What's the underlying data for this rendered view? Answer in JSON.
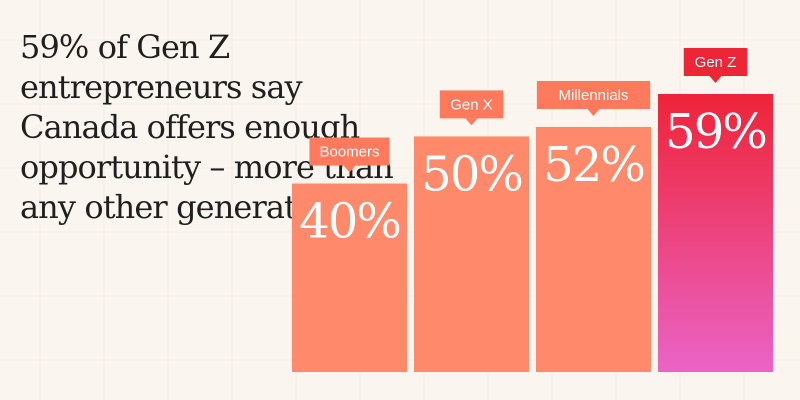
{
  "headline": "59% of Gen Z entrepreneurs say Canada offers enough opportunity – more than any other generation",
  "colors": {
    "background": "#faf6ef",
    "bar": "#ff8a6b",
    "label_box": "#ff7a5c",
    "highlight_top": "#ee2437",
    "highlight_bottom": "#ea64c6",
    "grid": "#f3d9cf"
  },
  "chart_data": {
    "type": "bar",
    "categories": [
      "Boomers",
      "Gen X",
      "Millennials",
      "Gen Z"
    ],
    "values": [
      40,
      50,
      52,
      59
    ],
    "value_labels": [
      "40%",
      "50%",
      "52%",
      "59%"
    ],
    "highlight": "Gen Z",
    "title": "59% of Gen Z entrepreneurs say Canada offers enough opportunity – more than any other generation",
    "xlabel": "",
    "ylabel": "",
    "ylim": [
      0,
      59
    ],
    "grid": true,
    "legend": "none"
  }
}
